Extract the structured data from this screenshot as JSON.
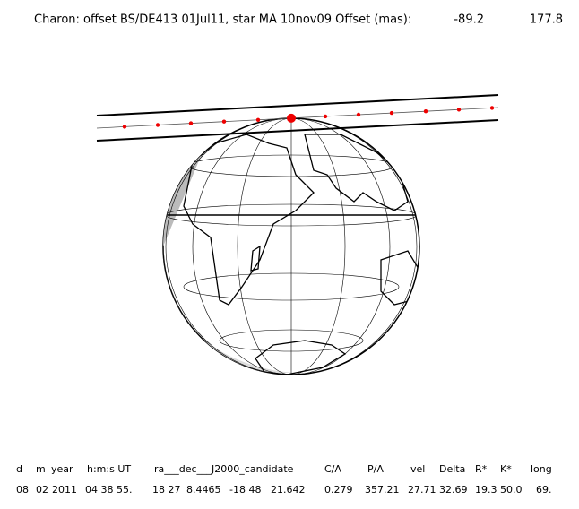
{
  "header": {
    "title": "Charon: offset BS/DE413 01Jul11, star MA 10nov09  Offset (mas):",
    "offset_x": "-89.2",
    "offset_y": "177.8"
  },
  "table": {
    "columns": [
      "d",
      "m",
      "year",
      "h:m:s UT",
      "ra___dec___J2000_candidate",
      "C/A",
      "P/A",
      "vel",
      "Delta",
      "R*",
      "K*",
      "long"
    ],
    "row": [
      "08",
      "02",
      "2011",
      "04 38 55.",
      "18 27",
      "8.4465",
      "-18 48",
      "21.642",
      "0.279",
      "357.21",
      "27.71",
      "32.69",
      "19.3",
      "50.0",
      "69."
    ]
  }
}
